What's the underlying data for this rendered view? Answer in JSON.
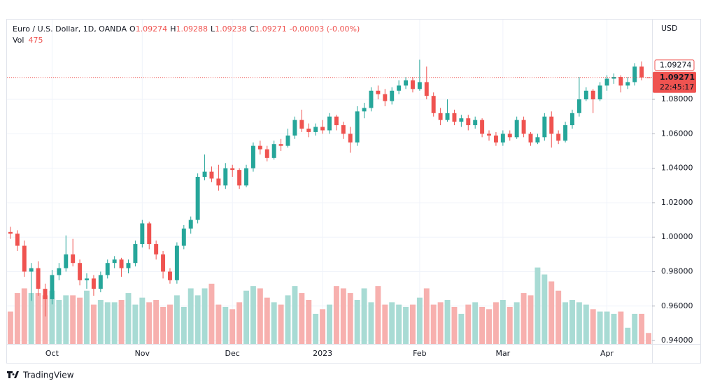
{
  "chart_data": {
    "type": "candlestick",
    "symbol": "Euro / U.S. Dollar, 1D, OANDA",
    "ohlc_labels": [
      "O",
      "H",
      "L",
      "C"
    ],
    "change": "-0.00003 (-0.00%)",
    "volume_label": "Vol",
    "currency": "USD",
    "countdown": "22:45:17",
    "brand": "TradingView",
    "up_color": "#26a69a",
    "down_color": "#ef5350",
    "up_volume_color": "#a8dbd4",
    "down_volume_color": "#f7b0ae",
    "grid": true,
    "ylim": [
      0.938,
      1.1263
    ],
    "yticks": [
      {
        "value": 0.94,
        "label": "0.94000"
      },
      {
        "value": 0.96,
        "label": "0.96000"
      },
      {
        "value": 0.98,
        "label": "0.98000"
      },
      {
        "value": 1.0,
        "label": "1.00000"
      },
      {
        "value": 1.02,
        "label": "1.02000"
      },
      {
        "value": 1.04,
        "label": "1.04000"
      },
      {
        "value": 1.06,
        "label": "1.06000"
      },
      {
        "value": 1.08,
        "label": "1.08000"
      }
    ],
    "volume_lim": [
      0,
      14000
    ],
    "categories": [
      null,
      null,
      null,
      null,
      null,
      null,
      "Oct",
      null,
      null,
      null,
      null,
      null,
      null,
      null,
      null,
      null,
      null,
      null,
      null,
      "Nov",
      null,
      null,
      null,
      null,
      null,
      null,
      null,
      null,
      null,
      null,
      null,
      null,
      "Dec",
      null,
      null,
      null,
      null,
      null,
      null,
      null,
      null,
      null,
      null,
      null,
      null,
      "2023",
      null,
      null,
      null,
      null,
      null,
      null,
      null,
      null,
      null,
      null,
      null,
      null,
      null,
      "Feb",
      null,
      null,
      null,
      null,
      null,
      null,
      null,
      null,
      null,
      null,
      null,
      "Mar",
      null,
      null,
      null,
      null,
      null,
      null,
      null,
      null,
      null,
      null,
      null,
      null,
      null,
      null,
      "Apr",
      null,
      null,
      null,
      null,
      null,
      null
    ],
    "open": [
      1.003,
      1.002,
      0.995,
      0.98,
      0.982,
      0.97,
      0.964,
      0.978,
      0.982,
      0.99,
      0.985,
      0.975,
      0.976,
      0.97,
      0.978,
      0.985,
      0.987,
      0.982,
      0.985,
      0.996,
      1.008,
      0.996,
      0.99,
      0.98,
      0.975,
      0.995,
      1.005,
      1.01,
      1.035,
      1.038,
      1.034,
      1.03,
      1.04,
      1.039,
      1.03,
      1.04,
      1.053,
      1.051,
      1.046,
      1.054,
      1.053,
      1.059,
      1.068,
      1.063,
      1.061,
      1.064,
      1.062,
      1.07,
      1.065,
      1.06,
      1.055,
      1.073,
      1.075,
      1.085,
      1.083,
      1.079,
      1.085,
      1.088,
      1.091,
      1.086,
      1.09,
      1.082,
      1.072,
      1.068,
      1.072,
      1.067,
      1.069,
      1.065,
      1.068,
      1.06,
      1.059,
      1.055,
      1.06,
      1.058,
      1.068,
      1.06,
      1.055,
      1.058,
      1.07,
      1.06,
      1.056,
      1.065,
      1.072,
      1.08,
      1.085,
      1.08,
      1.088,
      1.092,
      1.093,
      1.088,
      1.09,
      1.099,
      1.09274
    ],
    "high": [
      1.006,
      1.004,
      0.998,
      0.985,
      0.986,
      0.973,
      0.981,
      0.985,
      1.001,
      0.999,
      0.987,
      0.979,
      0.978,
      0.98,
      0.987,
      0.989,
      0.988,
      0.987,
      0.998,
      1.01,
      1.009,
      0.998,
      0.992,
      0.982,
      0.997,
      1.007,
      1.012,
      1.037,
      1.048,
      1.041,
      1.042,
      1.043,
      1.042,
      1.04,
      1.042,
      1.055,
      1.056,
      1.053,
      1.056,
      1.057,
      1.063,
      1.07,
      1.074,
      1.066,
      1.066,
      1.068,
      1.072,
      1.071,
      1.067,
      1.064,
      1.076,
      1.078,
      1.087,
      1.088,
      1.086,
      1.087,
      1.091,
      1.093,
      1.093,
      1.103,
      1.099,
      1.084,
      1.075,
      1.08,
      1.074,
      1.071,
      1.071,
      1.07,
      1.069,
      1.062,
      1.061,
      1.062,
      1.062,
      1.07,
      1.07,
      1.061,
      1.06,
      1.072,
      1.073,
      1.062,
      1.067,
      1.074,
      1.093,
      1.087,
      1.086,
      1.09,
      1.094,
      1.095,
      1.094,
      1.093,
      1.101,
      1.102,
      1.09288
    ],
    "low": [
      0.999,
      0.992,
      0.977,
      0.963,
      0.966,
      0.954,
      0.961,
      0.975,
      0.98,
      0.983,
      0.972,
      0.97,
      0.966,
      0.968,
      0.976,
      0.982,
      0.977,
      0.979,
      0.983,
      0.994,
      0.993,
      0.987,
      0.976,
      0.973,
      0.973,
      0.993,
      1.002,
      1.008,
      1.033,
      1.032,
      1.027,
      1.028,
      1.035,
      1.028,
      1.029,
      1.038,
      1.048,
      1.044,
      1.045,
      1.05,
      1.052,
      1.057,
      1.061,
      1.058,
      1.059,
      1.06,
      1.06,
      1.062,
      1.057,
      1.049,
      1.053,
      1.069,
      1.073,
      1.08,
      1.076,
      1.077,
      1.083,
      1.086,
      1.084,
      1.085,
      1.08,
      1.07,
      1.065,
      1.067,
      1.065,
      1.064,
      1.062,
      1.063,
      1.058,
      1.056,
      1.053,
      1.053,
      1.056,
      1.057,
      1.058,
      1.053,
      1.054,
      1.056,
      1.052,
      1.054,
      1.055,
      1.063,
      1.07,
      1.079,
      1.072,
      1.079,
      1.085,
      1.089,
      1.084,
      1.086,
      1.088,
      1.091,
      1.09238
    ],
    "close": [
      1.002,
      0.995,
      0.98,
      0.982,
      0.97,
      0.964,
      0.978,
      0.982,
      0.99,
      0.985,
      0.975,
      0.976,
      0.97,
      0.978,
      0.985,
      0.987,
      0.982,
      0.985,
      0.996,
      1.008,
      0.996,
      0.99,
      0.98,
      0.975,
      0.995,
      1.005,
      1.01,
      1.035,
      1.038,
      1.034,
      1.03,
      1.04,
      1.039,
      1.03,
      1.04,
      1.053,
      1.051,
      1.046,
      1.054,
      1.053,
      1.059,
      1.068,
      1.063,
      1.061,
      1.064,
      1.062,
      1.07,
      1.065,
      1.06,
      1.055,
      1.073,
      1.075,
      1.085,
      1.083,
      1.079,
      1.085,
      1.088,
      1.091,
      1.086,
      1.09,
      1.082,
      1.072,
      1.068,
      1.072,
      1.067,
      1.069,
      1.065,
      1.068,
      1.06,
      1.059,
      1.055,
      1.06,
      1.058,
      1.068,
      1.06,
      1.055,
      1.058,
      1.07,
      1.06,
      1.056,
      1.065,
      1.072,
      1.08,
      1.085,
      1.08,
      1.088,
      1.092,
      1.093,
      1.088,
      1.09,
      1.099,
      1.0927,
      1.09271
    ],
    "volume": [
      1400,
      2200,
      2400,
      2200,
      2200,
      2100,
      2300,
      1900,
      2100,
      2100,
      2000,
      2300,
      1700,
      1900,
      1800,
      1800,
      1900,
      2200,
      1700,
      2000,
      1800,
      1900,
      1600,
      1700,
      2100,
      1600,
      2400,
      2100,
      2400,
      2600,
      1700,
      1600,
      1500,
      1800,
      2300,
      2500,
      2400,
      2000,
      1800,
      1700,
      2100,
      2500,
      2200,
      1900,
      1300,
      1500,
      1700,
      2500,
      2400,
      2200,
      1900,
      2400,
      1800,
      2500,
      1700,
      1800,
      1700,
      1600,
      1700,
      2000,
      2400,
      1700,
      1800,
      1900,
      1600,
      1300,
      1700,
      1800,
      1600,
      1500,
      1800,
      1900,
      1600,
      1800,
      2200,
      2100,
      3300,
      3000,
      2700,
      2300,
      1800,
      1900,
      1800,
      1700,
      1500,
      1400,
      1400,
      1300,
      1400,
      700,
      1300,
      1300,
      475
    ]
  }
}
